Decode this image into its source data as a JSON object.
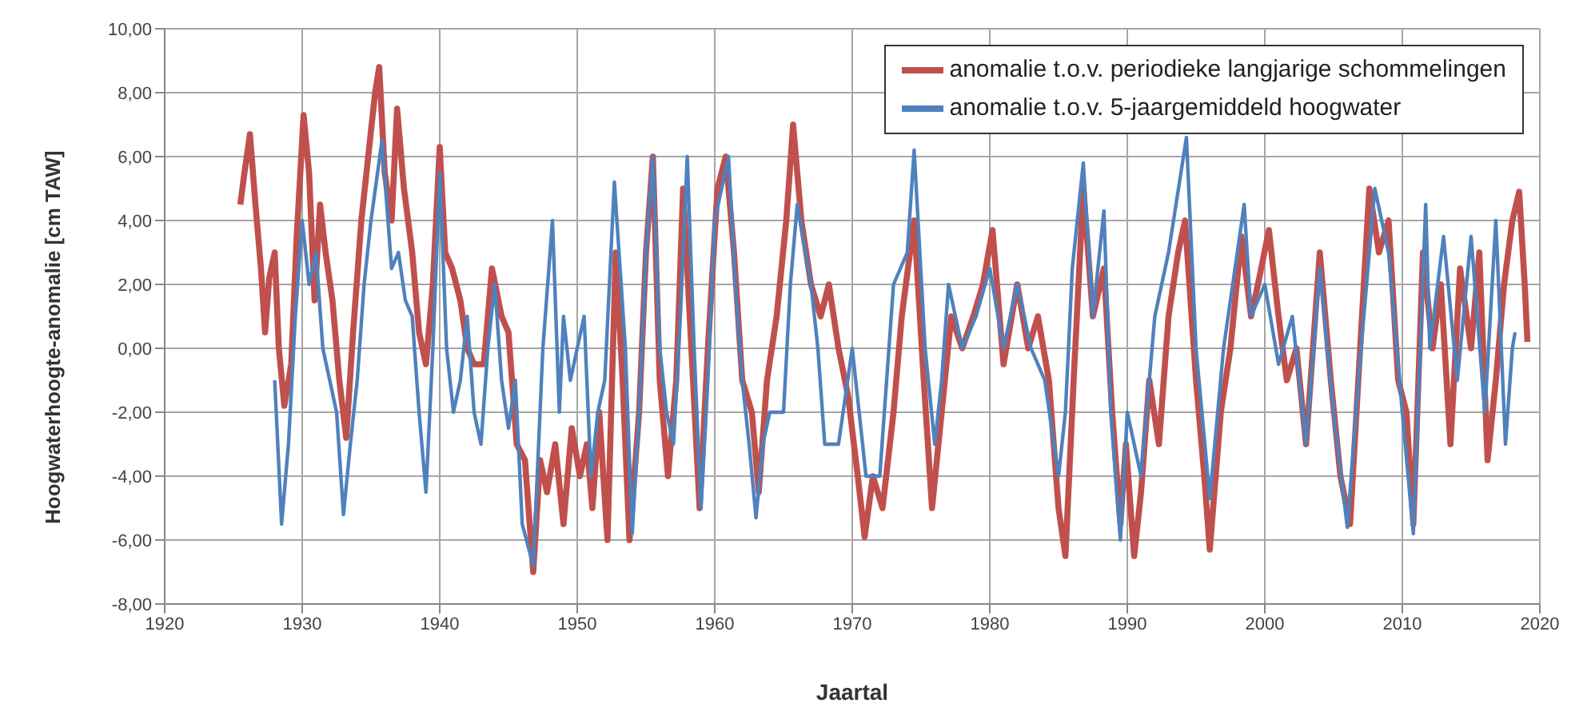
{
  "chart_data": {
    "type": "line",
    "xlabel": "Jaartal",
    "ylabel": "Hoogwaterhoogte-anomalie [cm TAW]",
    "xlim": [
      1920,
      2020
    ],
    "xticks": [
      1920,
      1930,
      1940,
      1950,
      1960,
      1970,
      1980,
      1990,
      2000,
      2010,
      2020
    ],
    "ylim": [
      -8,
      10
    ],
    "yticks": [
      {
        "value": -8,
        "label": "-8,00"
      },
      {
        "value": -6,
        "label": "-6,00"
      },
      {
        "value": -4,
        "label": "-4,00"
      },
      {
        "value": -2,
        "label": "-2,00"
      },
      {
        "value": 0,
        "label": "0,00"
      },
      {
        "value": 2,
        "label": "2,00"
      },
      {
        "value": 4,
        "label": "4,00"
      },
      {
        "value": 6,
        "label": "6,00"
      },
      {
        "value": 8,
        "label": "8,00"
      },
      {
        "value": 10,
        "label": "10,00"
      }
    ],
    "grid": true,
    "legend": "top right",
    "marker": "none",
    "line_style": "solid",
    "series": [
      {
        "name": "anomalie t.o.v. periodieke langjarige schommelingen",
        "color": "#c0504d",
        "x": [
          1925.5,
          1925.8,
          1926.2,
          1926.6,
          1927,
          1927.3,
          1927.6,
          1928,
          1928.3,
          1928.7,
          1929.2,
          1929.6,
          1930.1,
          1930.5,
          1930.9,
          1931.3,
          1931.7,
          1932.2,
          1932.7,
          1933.2,
          1933.7,
          1934.3,
          1934.8,
          1935.3,
          1935.6,
          1936,
          1936.5,
          1936.9,
          1937.4,
          1938,
          1938.5,
          1939,
          1939.5,
          1940,
          1940.4,
          1940.9,
          1941.5,
          1942,
          1942.5,
          1943.2,
          1943.8,
          1944.5,
          1945,
          1945.6,
          1946.2,
          1946.8,
          1947.3,
          1947.8,
          1948.4,
          1949,
          1949.6,
          1950.2,
          1950.7,
          1951.1,
          1951.6,
          1952.2,
          1952.8,
          1953.3,
          1953.8,
          1954.5,
          1955,
          1955.5,
          1956,
          1956.6,
          1957.2,
          1957.7,
          1958.3,
          1958.9,
          1959.5,
          1960.2,
          1960.8,
          1961.4,
          1962,
          1962.7,
          1963.2,
          1963.8,
          1964.5,
          1965.2,
          1965.7,
          1966.3,
          1967,
          1967.7,
          1968.3,
          1969,
          1969.7,
          1970.4,
          1970.9,
          1971.5,
          1972.2,
          1973,
          1973.6,
          1974.5,
          1975.2,
          1975.8,
          1976.5,
          1977.2,
          1978,
          1978.8,
          1979.5,
          1980.2,
          1981,
          1982,
          1982.8,
          1983.5,
          1984.3,
          1985,
          1985.5,
          1986.1,
          1986.8,
          1987.5,
          1988.3,
          1988.9,
          1989.5,
          1989.9,
          1990.5,
          1991,
          1991.6,
          1992.3,
          1993,
          1993.7,
          1994.2,
          1995,
          1995.6,
          1996,
          1996.8,
          1997.5,
          1998.3,
          1999,
          1999.5,
          2000.3,
          2001,
          2001.6,
          2002.3,
          2003,
          2004,
          2004.8,
          2005.5,
          2006.2,
          2006.8,
          2007.6,
          2008.3,
          2009,
          2009.7,
          2010.3,
          2010.8,
          2011.5,
          2012.2,
          2012.8,
          2013.5,
          2014.2,
          2015,
          2015.6,
          2016.2,
          2016.8,
          2017.4,
          2018,
          2018.5,
          2018.9,
          2019.1
        ],
        "values": [
          4.5,
          5.5,
          6.7,
          4.5,
          2.5,
          0.5,
          2.2,
          3,
          0,
          -1.8,
          -0.5,
          3.5,
          7.3,
          5.5,
          1.5,
          4.5,
          3,
          1.5,
          -1,
          -2.8,
          0.5,
          4,
          6,
          8,
          8.8,
          5.5,
          4,
          7.5,
          5,
          3,
          0.5,
          -0.5,
          2,
          6.3,
          3,
          2.5,
          1.5,
          0,
          -0.5,
          -0.5,
          2.5,
          1,
          0.5,
          -3,
          -3.5,
          -7,
          -3.5,
          -4.5,
          -3,
          -5.5,
          -2.5,
          -4,
          -3,
          -5,
          -2,
          -6,
          3,
          -1,
          -6,
          -2,
          3,
          6,
          -1,
          -4,
          -1,
          5,
          0,
          -5,
          0,
          5,
          6,
          3,
          -1,
          -2,
          -4.5,
          -1,
          1,
          4,
          7,
          4,
          2,
          1,
          2,
          0,
          -1.5,
          -4,
          -5.9,
          -4,
          -5,
          -2,
          1,
          4,
          -1,
          -5,
          -2,
          1,
          0,
          1,
          2,
          3.7,
          -0.5,
          2,
          0,
          1,
          -1,
          -5,
          -6.5,
          -1,
          5,
          1,
          2.5,
          -2,
          -5.5,
          -3,
          -6.5,
          -4.5,
          -1,
          -3,
          1,
          3,
          4,
          -1,
          -4,
          -6.3,
          -2,
          0,
          3.5,
          1,
          2,
          3.7,
          1,
          -1,
          0,
          -3,
          3,
          -1,
          -4,
          -5.5,
          -1,
          5,
          3,
          4,
          -1,
          -2,
          -5.5,
          3,
          0,
          2,
          -3,
          2.5,
          0,
          3,
          -3.5,
          -1,
          2,
          4,
          4.9,
          2,
          0.2
        ]
      },
      {
        "name": "anomalie t.o.v. 5-jaargemiddeld hoogwater",
        "color": "#4f81bd",
        "x": [
          1928,
          1928.5,
          1929,
          1929.5,
          1930,
          1930.5,
          1931,
          1931.5,
          1932,
          1932.5,
          1933,
          1933.5,
          1934,
          1934.5,
          1935,
          1935.8,
          1936.5,
          1937,
          1937.5,
          1938,
          1938.5,
          1939,
          1939.5,
          1940,
          1940.5,
          1941,
          1941.5,
          1942,
          1942.5,
          1943,
          1943.5,
          1944,
          1944.5,
          1945,
          1945.5,
          1946,
          1946.8,
          1947.5,
          1948.2,
          1948.7,
          1949,
          1949.5,
          1950,
          1950.5,
          1951,
          1951.5,
          1952,
          1952.7,
          1953.5,
          1954,
          1954.5,
          1955,
          1955.5,
          1956,
          1956.5,
          1957,
          1957.5,
          1958,
          1958.5,
          1959,
          1959.5,
          1960,
          1961,
          1961.5,
          1962,
          1962.5,
          1963,
          1963.5,
          1964,
          1965,
          1965.5,
          1966,
          1967,
          1967.5,
          1968,
          1969,
          1970,
          1970.5,
          1971,
          1972,
          1972.5,
          1973,
          1974,
          1974.5,
          1975.3,
          1976,
          1976.5,
          1977,
          1978,
          1979,
          1980,
          1981,
          1982,
          1983,
          1984,
          1985,
          1985.5,
          1986,
          1986.8,
          1987.5,
          1988.3,
          1988.8,
          1989.5,
          1990,
          1991,
          1992,
          1993,
          1994.3,
          1995,
          1996,
          1997,
          1998.5,
          1999,
          2000,
          2001,
          2002,
          2003,
          2004,
          2005,
          2006,
          2007,
          2008,
          2009,
          2010,
          2010.8,
          2011.7,
          2012,
          2013,
          2014,
          2015,
          2016,
          2016.8,
          2017.5,
          2018,
          2018.2
        ],
        "values": [
          -1,
          -5.5,
          -3,
          1,
          4,
          2,
          3,
          0,
          -1,
          -2,
          -5.2,
          -3,
          -1,
          2,
          4,
          6.5,
          2.5,
          3,
          1.5,
          1,
          -2,
          -4.5,
          0,
          5.5,
          0,
          -2,
          -1,
          1,
          -2,
          -3,
          0,
          2,
          -1,
          -2.5,
          -1,
          -5.5,
          -6.8,
          0,
          4,
          -2,
          1,
          -1,
          0,
          1,
          -4,
          -2,
          -1,
          5.2,
          0,
          -5.8,
          -2,
          3,
          6,
          0,
          -2,
          -3,
          1,
          6,
          0,
          -5,
          -1,
          4,
          6,
          2,
          -1,
          -3,
          -5.3,
          -3,
          -2,
          -2,
          2,
          4.5,
          2,
          0,
          -3,
          -3,
          0,
          -2,
          -4,
          -4,
          -1,
          2,
          3,
          6.2,
          0,
          -3,
          -1,
          2,
          0,
          1,
          2.5,
          0,
          2,
          0,
          -1,
          -4,
          -2,
          2.5,
          5.8,
          1,
          4.3,
          -2,
          -6,
          -2,
          -4,
          1,
          3,
          6.6,
          0,
          -4.7,
          0,
          4.5,
          1,
          2,
          -0.5,
          1,
          -3,
          2.5,
          -2,
          -5.6,
          0,
          5,
          3,
          -2,
          -5.8,
          4.5,
          0,
          3.5,
          -1,
          3.5,
          -2,
          4,
          -3,
          0,
          0.5
        ]
      }
    ]
  }
}
